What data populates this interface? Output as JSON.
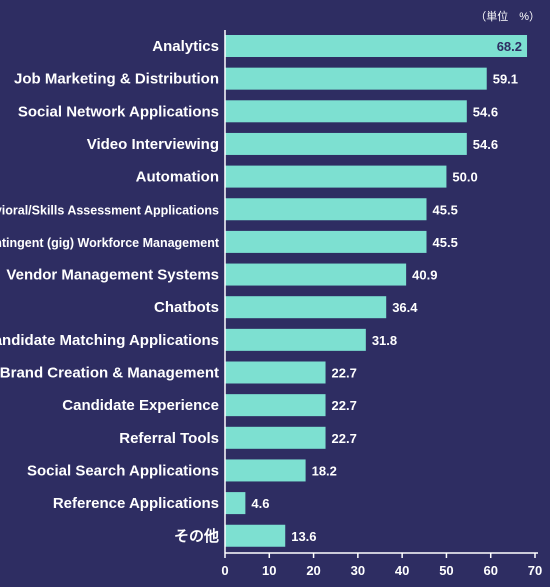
{
  "chart_data": {
    "type": "bar",
    "orientation": "horizontal",
    "unit_label": "（単位　%）",
    "categories": [
      "Analytics",
      "Job Marketing & Distribution",
      "Social Network Applications",
      "Video Interviewing",
      "Automation",
      "Behavioral/Skills Assessment Applications",
      "Contingent (gig) Workforce Management",
      "Vendor Management Systems",
      "Chatbots",
      "Candidate Matching Applications",
      "Brand Creation & Management",
      "Candidate Experience",
      "Referral Tools",
      "Social Search Applications",
      "Reference Applications",
      "その他"
    ],
    "values": [
      68.2,
      59.1,
      54.6,
      54.6,
      50.0,
      45.5,
      45.5,
      40.9,
      36.4,
      31.8,
      22.7,
      22.7,
      22.7,
      18.2,
      4.6,
      13.6
    ],
    "value_labels": [
      "68.2",
      "59.1",
      "54.6",
      "54.6",
      "50.0",
      "45.5",
      "45.5",
      "40.9",
      "36.4",
      "31.8",
      "22.7",
      "22.7",
      "22.7",
      "18.2",
      "4.6",
      "13.6"
    ],
    "xlim": [
      0,
      70
    ],
    "xticks": [
      0,
      10,
      20,
      30,
      40,
      50,
      60,
      70
    ],
    "tick_labels": [
      "0",
      "10",
      "20",
      "30",
      "40",
      "50",
      "60",
      "70"
    ],
    "grid": false,
    "colors": {
      "background": "#2e2d62",
      "bar": "#7de0d1",
      "text": "#ffffff",
      "inside_label": "#2e2d62"
    }
  }
}
